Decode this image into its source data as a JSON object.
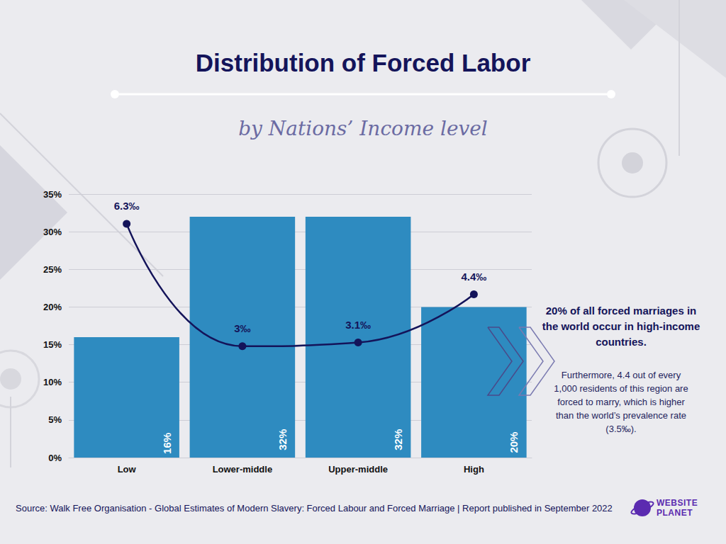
{
  "chart_data": {
    "type": "bar",
    "title": "Distribution of Forced Labor",
    "subtitle": "by Nations’ Income level",
    "categories": [
      "Low",
      "Lower-middle",
      "Upper-middle",
      "High"
    ],
    "series": [
      {
        "type": "bar",
        "color": "#2e8bc0",
        "values": [
          16,
          32,
          32,
          20
        ],
        "value_labels": [
          "16%",
          "32%",
          "32%",
          "20%"
        ]
      },
      {
        "type": "line",
        "axis": "y2",
        "color": "#14145a",
        "marker": "circle",
        "line_style": "solid",
        "values": [
          6.3,
          3,
          3.1,
          4.4
        ],
        "value_labels": [
          "6.3‰",
          "3‰",
          "3.1‰",
          "4.4‰"
        ]
      }
    ],
    "ylim": [
      0,
      35
    ],
    "yticks": [
      {
        "value": 0,
        "label": "0%"
      },
      {
        "value": 5,
        "label": "5%"
      },
      {
        "value": 10,
        "label": "10%"
      },
      {
        "value": 15,
        "label": "15%"
      },
      {
        "value": 20,
        "label": "20%"
      },
      {
        "value": 25,
        "label": "25%"
      },
      {
        "value": 30,
        "label": "30%"
      },
      {
        "value": 35,
        "label": "35%"
      }
    ],
    "y2lim": [
      0,
      7.1
    ],
    "grid": true,
    "data_labels": true,
    "annotations": {
      "heading": "20% of all forced marriages in the world occur in high-income countries.",
      "text": "Furthermore, 4.4 out of every 1,000 residents of this region are forced to marry, which is higher than the world’s prevalence rate (3.5‰)."
    },
    "source": "Source: Walk Free Organisation - Global Estimates of Modern Slavery: Forced Labour and Forced Marriage | Report published in September 2022",
    "logo": [
      "WEBSITE",
      "PLANET"
    ]
  }
}
